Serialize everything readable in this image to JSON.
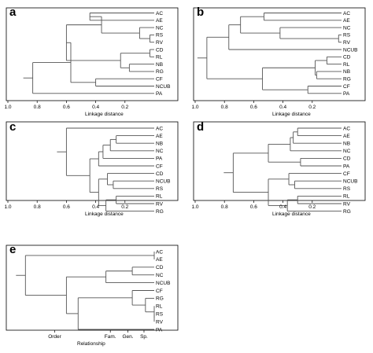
{
  "panels": [
    {
      "label": "a",
      "leaves": [
        "AC",
        "AE",
        "NC",
        "RS",
        "RV",
        "CD",
        "RL",
        "NB",
        "RG",
        "CF",
        "NCUB",
        "PA"
      ],
      "axis_title": "Linkage distance",
      "tick_labels": [
        "1.0",
        "0.8",
        "0.6",
        "0.4",
        "0.2"
      ],
      "tick_values": [
        1.0,
        0.8,
        0.6,
        0.4,
        0.2
      ],
      "xmax": 1.0,
      "xmin": 0.0,
      "tree": [
        [
          0.83,
          [
            0.57,
            [
              0.6,
              [
                0.36,
                [
                  0.44,
                  "AC",
                  "AE"
                ],
                [
                  0.1,
                  "NC",
                  [
                    0.03,
                    "RS",
                    "RV"
                  ]
                ]
              ],
              [
                0.23,
                [
                  0.03,
                  "CD",
                  "RL"
                ],
                [
                  0.17,
                  "NB",
                  "RG"
                ]
              ]
            ],
            [
              0.4,
              "CF",
              "NCUB"
            ]
          ],
          "PA"
        ]
      ]
    },
    {
      "label": "b",
      "leaves": [
        "AC",
        "AE",
        "NC",
        "RS",
        "RV",
        "NCUB",
        "CD",
        "RL",
        "NB",
        "RG",
        "CF",
        "PA"
      ],
      "axis_title": "Linkage distance",
      "tick_labels": [
        "1.0",
        "0.8",
        "0.6",
        "0.4",
        "0.2"
      ],
      "tick_values": [
        1.0,
        0.8,
        0.6,
        0.4,
        0.2
      ],
      "xmax": 1.0,
      "xmin": 0.0,
      "tree": [
        [
          0.92,
          [
            0.77,
            [
              0.69,
              [
                0.53,
                "AC",
                "AE"
              ],
              [
                0.42,
                "NC",
                [
                  0.02,
                  "RS",
                  "RV"
                ]
              ]
            ],
            "NCUB"
          ],
          [
            0.54,
            [
              0.18,
              [
                0.1,
                "CD",
                "RL"
              ],
              [
                0.17,
                "NB",
                "RG"
              ]
            ],
            [
              0.23,
              "CF",
              "PA"
            ]
          ]
        ]
      ]
    },
    {
      "label": "c",
      "leaves": [
        "AC",
        "AE",
        "NB",
        "NC",
        "PA",
        "CF",
        "CD",
        "NCUB",
        "RS",
        "RL",
        "RV",
        "RG"
      ],
      "axis_title": "Linkage distance",
      "tick_labels": [
        "1.0",
        "0.8",
        "0.6",
        "0.4",
        "0.2"
      ],
      "tick_values": [
        1.0,
        0.8,
        0.6,
        0.4,
        0.2
      ],
      "xmax": 1.0,
      "xmin": 0.0,
      "tree": [
        [
          0.6,
          "AC",
          [
            0.44,
            [
              0.38,
              [
                0.35,
                [
                  0.3,
                  [
                    0.26,
                    "AE",
                    "NB"
                  ],
                  "NC"
                ],
                "PA"
              ],
              "CF"
            ],
            [
              0.38,
              [
                0.32,
                "CD",
                [
                  0.28,
                  "NCUB",
                  "RS"
                ]
              ],
              [
                0.33,
                [
                  0.26,
                  "RL",
                  "RV"
                ],
                "RG"
              ]
            ]
          ]
        ]
      ]
    },
    {
      "label": "d",
      "leaves": [
        "AC",
        "AE",
        "NB",
        "NC",
        "CD",
        "PA",
        "CF",
        "NCUB",
        "RS",
        "RL",
        "RV",
        "RG"
      ],
      "axis_title": "Linkage distance",
      "tick_labels": [
        "1.0",
        "0.8",
        "0.6",
        "0.4",
        "0.2"
      ],
      "tick_values": [
        1.0,
        0.8,
        0.6,
        0.4,
        0.2
      ],
      "xmax": 1.0,
      "xmin": 0.0,
      "tree": [
        [
          0.74,
          [
            0.5,
            [
              0.35,
              [
                0.33,
                [
                  0.3,
                  "AC",
                  "AE"
                ],
                "NB"
              ],
              "NC"
            ],
            [
              0.28,
              "CD",
              "PA"
            ]
          ],
          [
            0.5,
            [
              0.36,
              "CF",
              [
                0.32,
                "NCUB",
                "RS"
              ]
            ],
            [
              0.37,
              [
                0.3,
                "RL",
                "RV"
              ],
              "RG"
            ]
          ]
        ]
      ]
    },
    {
      "label": "e",
      "leaves": [
        "AC",
        "AE",
        "CD",
        "NC",
        "NCUB",
        "CF",
        "RG",
        "RL",
        "RS",
        "RV",
        "PA"
      ],
      "axis_title": "Relationship",
      "tick_labels": [
        "Order",
        "Fam.",
        "Gen.",
        "Sp."
      ],
      "tick_values": [
        0.68,
        0.3,
        0.18,
        0.07
      ],
      "xmax": 1.0,
      "xmin": 0.0,
      "tree": [
        [
          0.88,
          [
            0.0,
            "AC",
            "AE"
          ],
          [
            0.6,
            [
              0.33,
              [
                0.15,
                "CD",
                "NC"
              ],
              "NCUB"
            ],
            [
              0.52,
              [
                0.15,
                "CF",
                [
                  0.06,
                  "RG",
                  [
                    0.0,
                    "RL",
                    [
                      0.0,
                      "RS",
                      "RV"
                    ]
                  ]
                ]
              ],
              "PA"
            ]
          ]
        ]
      ]
    }
  ]
}
